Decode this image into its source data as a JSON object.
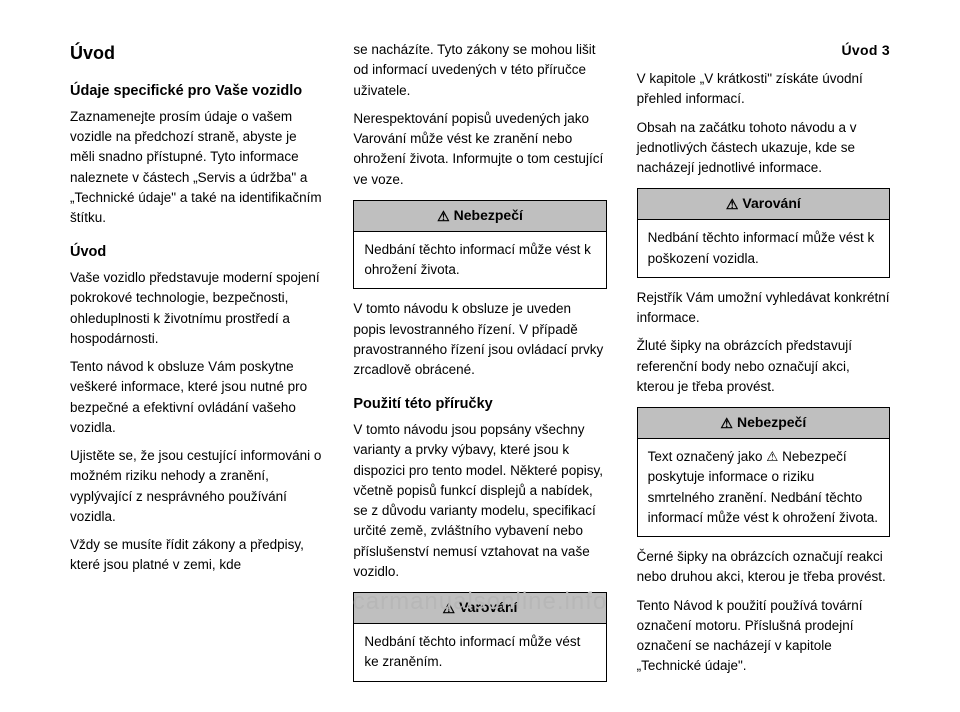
{
  "page_header": "Úvod 3",
  "watermark": "carmanualsonline.info",
  "callout_icon": "⚠",
  "col1": {
    "heading": "Úvod",
    "sub1": "Údaje specifické pro Vaše vozidlo",
    "p1": "Zaznamenejte prosím údaje o vašem vozidle na předchozí straně, abyste je měli snadno přístupné. Tyto informace naleznete v částech „Servis a údržba\" a „Technické údaje\" a také na identifikačním štítku.",
    "sub2": "Úvod",
    "p2": "Vaše vozidlo představuje moderní spojení pokrokové technologie, bezpečnosti, ohleduplnosti k životnímu prostředí a hospodárnosti.",
    "p3": "Tento návod k obsluze Vám poskytne veškeré informace, které jsou nutné pro bezpečné a efektivní ovládání vašeho vozidla.",
    "p4": "Ujistěte se, že jsou cestující informováni o možném riziku nehody a zranění, vyplývající z nesprávného používání vozidla.",
    "p5": "Vždy se musíte řídit zákony a předpisy, které jsou platné v zemi, kde",
    "p5b": "se nacházíte. Tyto zákony se mohou lišit od informací uvedených v této příručce uživatele."
  },
  "col2": {
    "p1": "Nerespektování popisů uvedených jako Varování může vést ke zranění nebo ohrožení života. Informujte o tom cestující ve voze.",
    "danger": {
      "label": "Nebezpečí",
      "body": "Nedbání těchto informací může vést k ohrožení života."
    },
    "p2": "V tomto návodu k obsluze je uveden popis levostranného řízení. V případě pravostranného řízení jsou ovládací prvky zrcadlově obrácené.",
    "sub": "Použití této příručky",
    "b1": "V tomto návodu jsou popsány všechny varianty a prvky výbavy, které jsou k dispozici pro tento model. Některé popisy, včetně popisů funkcí displejů a nabídek, se z důvodu varianty modelu, specifikací určité země, zvláštního vybavení nebo příslušenství nemusí vztahovat na vaše vozidlo.",
    "warning": {
      "label": "Varování",
      "body": "Nedbání těchto informací může vést ke zraněním."
    }
  },
  "col3": {
    "b1": "V kapitole „V krátkosti\" získáte úvodní přehled informací.",
    "b2": "Obsah na začátku tohoto návodu a v jednotlivých částech ukazuje, kde se nacházejí jednotlivé informace.",
    "warning": {
      "label": "Varování",
      "body": "Nedbání těchto informací může vést k poškození vozidla."
    },
    "b3": "Rejstřík Vám umožní vyhledávat konkrétní informace.",
    "b4": "Žluté šipky na obrázcích představují referenční body nebo označují akci, kterou je třeba provést.",
    "danger": {
      "label": "Nebezpečí",
      "body": "Text označený jako ⚠ Nebezpečí poskytuje informace o riziku smrtelného zranění. Nedbání těchto informací může vést k ohrožení života."
    },
    "b5": "Černé šipky na obrázcích označují reakci nebo druhou akci, kterou je třeba provést.",
    "b6": "Tento Návod k použití používá tovární označení motoru. Příslušná prodejní označení se nacházejí v kapitole „Technické údaje\"."
  },
  "colors": {
    "callout_bg": "#bfbfbf",
    "text": "#000000",
    "watermark": "#b7b7b7",
    "page_bg": "#ffffff"
  }
}
